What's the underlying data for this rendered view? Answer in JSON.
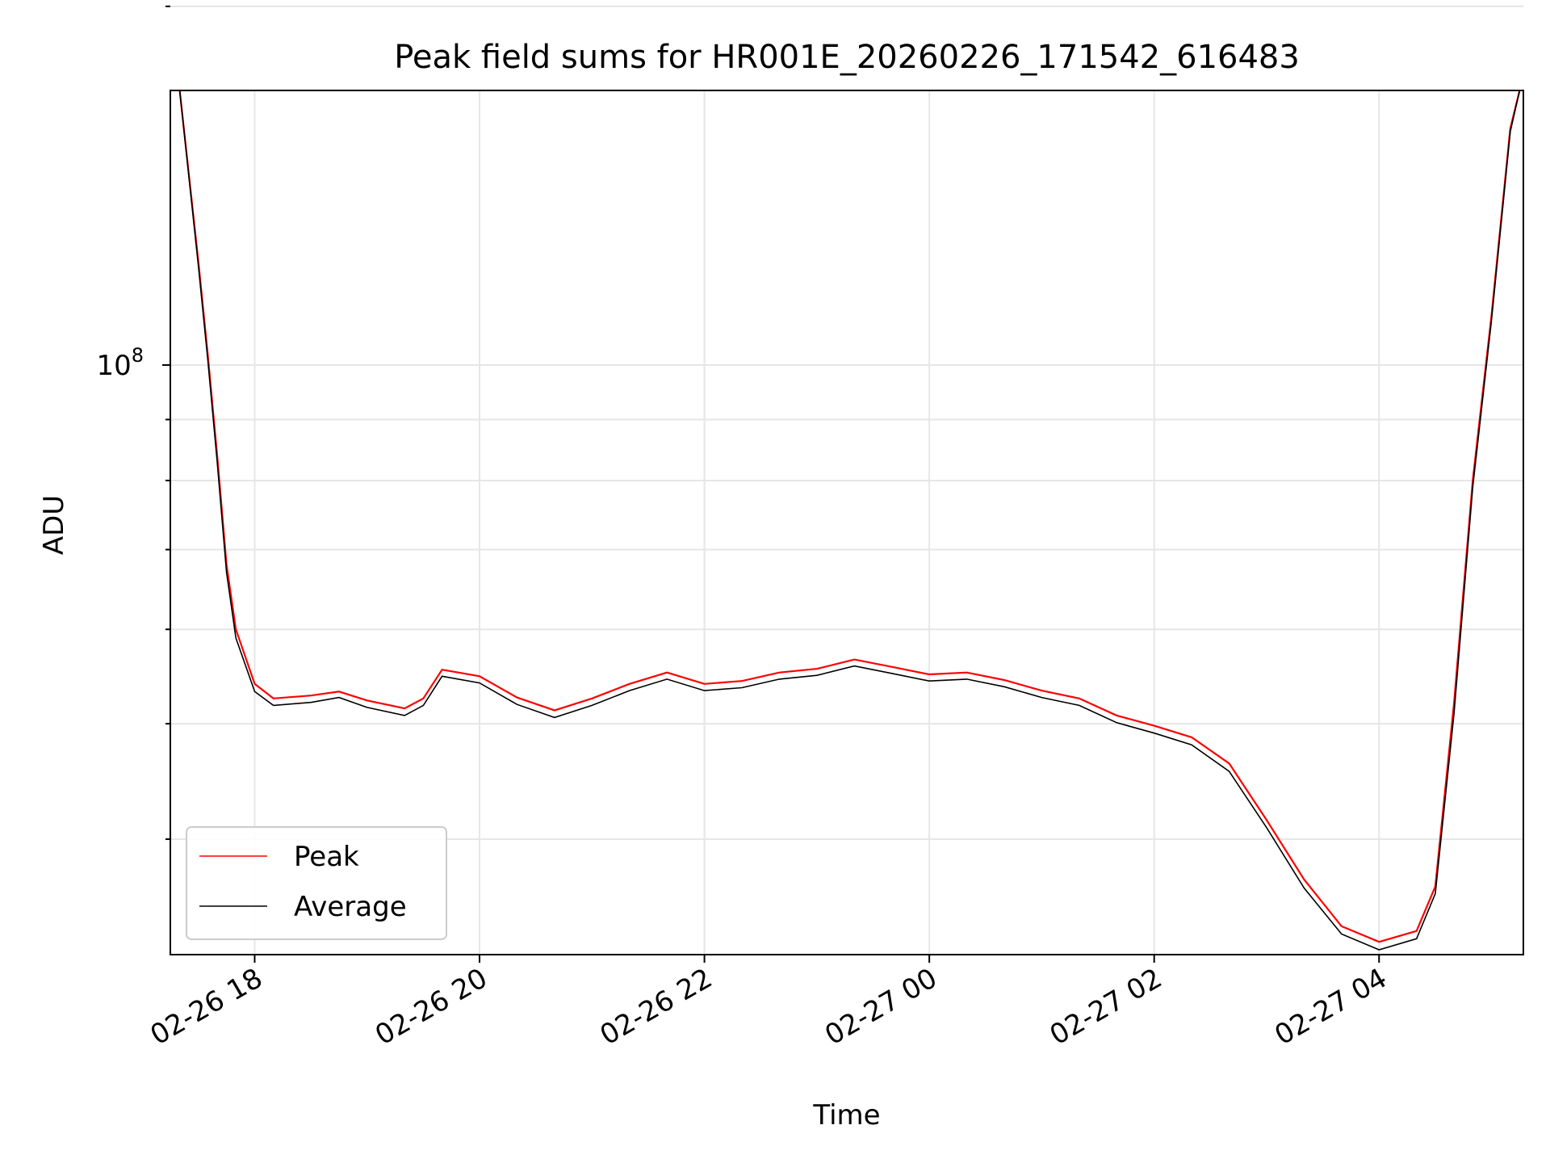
{
  "chart_data": {
    "type": "line",
    "title": "Peak field sums for HR001E_20260226_171542_616483",
    "xlabel": "Time",
    "ylabel": "ADU",
    "y_scale": "log",
    "ylim": [
      32000000,
      170000000
    ],
    "xlim": [
      "2026-02-26 17:15",
      "2026-02-27 05:17"
    ],
    "grid": true,
    "legend_position": "lower-left",
    "x_ticks": [
      {
        "t": "2026-02-26 18:00",
        "label": "02-26 18"
      },
      {
        "t": "2026-02-26 20:00",
        "label": "02-26 20"
      },
      {
        "t": "2026-02-26 22:00",
        "label": "02-26 22"
      },
      {
        "t": "2026-02-27 00:00",
        "label": "02-27 00"
      },
      {
        "t": "2026-02-27 02:00",
        "label": "02-27 02"
      },
      {
        "t": "2026-02-27 04:00",
        "label": "02-27 04"
      }
    ],
    "y_major_tick": {
      "value": 100000000,
      "label_base": "10",
      "label_exp": "8"
    },
    "y_minor_ticks": [
      40000000,
      50000000,
      60000000,
      70000000,
      80000000,
      90000000,
      200000000
    ],
    "series": [
      {
        "name": "Peak",
        "color": "#ff0000",
        "points": [
          [
            "2026-02-26 17:20",
            170000000
          ],
          [
            "2026-02-26 17:30",
            122000000
          ],
          [
            "2026-02-26 17:35",
            102000000
          ],
          [
            "2026-02-26 17:40",
            84000000
          ],
          [
            "2026-02-26 17:45",
            68000000
          ],
          [
            "2026-02-26 17:50",
            60000000
          ],
          [
            "2026-02-26 18:00",
            54000000
          ],
          [
            "2026-02-26 18:10",
            52500000
          ],
          [
            "2026-02-26 18:30",
            52800000
          ],
          [
            "2026-02-26 18:45",
            53200000
          ],
          [
            "2026-02-26 19:00",
            52300000
          ],
          [
            "2026-02-26 19:20",
            51500000
          ],
          [
            "2026-02-26 19:30",
            52500000
          ],
          [
            "2026-02-26 19:40",
            55500000
          ],
          [
            "2026-02-26 20:00",
            54800000
          ],
          [
            "2026-02-26 20:20",
            52600000
          ],
          [
            "2026-02-26 20:40",
            51300000
          ],
          [
            "2026-02-26 21:00",
            52500000
          ],
          [
            "2026-02-26 21:20",
            54000000
          ],
          [
            "2026-02-26 21:40",
            55200000
          ],
          [
            "2026-02-26 22:00",
            54000000
          ],
          [
            "2026-02-26 22:20",
            54300000
          ],
          [
            "2026-02-26 22:40",
            55200000
          ],
          [
            "2026-02-26 23:00",
            55600000
          ],
          [
            "2026-02-26 23:20",
            56600000
          ],
          [
            "2026-02-26 23:40",
            55800000
          ],
          [
            "2026-02-27 00:00",
            55000000
          ],
          [
            "2026-02-27 00:20",
            55200000
          ],
          [
            "2026-02-27 00:40",
            54400000
          ],
          [
            "2026-02-27 01:00",
            53300000
          ],
          [
            "2026-02-27 01:20",
            52500000
          ],
          [
            "2026-02-27 01:40",
            50800000
          ],
          [
            "2026-02-27 02:00",
            49800000
          ],
          [
            "2026-02-27 02:20",
            48700000
          ],
          [
            "2026-02-27 02:40",
            46300000
          ],
          [
            "2026-02-27 03:00",
            41500000
          ],
          [
            "2026-02-27 03:20",
            37000000
          ],
          [
            "2026-02-27 03:40",
            33800000
          ],
          [
            "2026-02-27 04:00",
            32800000
          ],
          [
            "2026-02-27 04:20",
            33500000
          ],
          [
            "2026-02-27 04:30",
            36500000
          ],
          [
            "2026-02-27 04:40",
            52000000
          ],
          [
            "2026-02-27 04:50",
            80000000
          ],
          [
            "2026-02-27 05:00",
            110000000
          ],
          [
            "2026-02-27 05:10",
            158000000
          ],
          [
            "2026-02-27 05:15",
            170000000
          ]
        ]
      },
      {
        "name": "Average",
        "color": "#000000",
        "points": [
          [
            "2026-02-26 17:20",
            170000000
          ],
          [
            "2026-02-26 17:30",
            121000000
          ],
          [
            "2026-02-26 17:35",
            101000000
          ],
          [
            "2026-02-26 17:40",
            83000000
          ],
          [
            "2026-02-26 17:45",
            67000000
          ],
          [
            "2026-02-26 17:50",
            59000000
          ],
          [
            "2026-02-26 18:00",
            53200000
          ],
          [
            "2026-02-26 18:10",
            51800000
          ],
          [
            "2026-02-26 18:30",
            52100000
          ],
          [
            "2026-02-26 18:45",
            52600000
          ],
          [
            "2026-02-26 19:00",
            51600000
          ],
          [
            "2026-02-26 19:20",
            50800000
          ],
          [
            "2026-02-26 19:30",
            51800000
          ],
          [
            "2026-02-26 19:40",
            54800000
          ],
          [
            "2026-02-26 20:00",
            54100000
          ],
          [
            "2026-02-26 20:20",
            51900000
          ],
          [
            "2026-02-26 20:40",
            50600000
          ],
          [
            "2026-02-26 21:00",
            51800000
          ],
          [
            "2026-02-26 21:20",
            53300000
          ],
          [
            "2026-02-26 21:40",
            54500000
          ],
          [
            "2026-02-26 22:00",
            53300000
          ],
          [
            "2026-02-26 22:20",
            53600000
          ],
          [
            "2026-02-26 22:40",
            54500000
          ],
          [
            "2026-02-26 23:00",
            54900000
          ],
          [
            "2026-02-26 23:20",
            55900000
          ],
          [
            "2026-02-26 23:40",
            55100000
          ],
          [
            "2026-02-27 00:00",
            54300000
          ],
          [
            "2026-02-27 00:20",
            54500000
          ],
          [
            "2026-02-27 00:40",
            53700000
          ],
          [
            "2026-02-27 01:00",
            52600000
          ],
          [
            "2026-02-27 01:20",
            51800000
          ],
          [
            "2026-02-27 01:40",
            50100000
          ],
          [
            "2026-02-27 02:00",
            49100000
          ],
          [
            "2026-02-27 02:20",
            48000000
          ],
          [
            "2026-02-27 02:40",
            45600000
          ],
          [
            "2026-02-27 03:00",
            40900000
          ],
          [
            "2026-02-27 03:20",
            36400000
          ],
          [
            "2026-02-27 03:40",
            33300000
          ],
          [
            "2026-02-27 04:00",
            32300000
          ],
          [
            "2026-02-27 04:20",
            33000000
          ],
          [
            "2026-02-27 04:30",
            36000000
          ],
          [
            "2026-02-27 04:40",
            51000000
          ],
          [
            "2026-02-27 04:50",
            79000000
          ],
          [
            "2026-02-27 05:00",
            109000000
          ],
          [
            "2026-02-27 05:10",
            157000000
          ],
          [
            "2026-02-27 05:15",
            170000000
          ]
        ]
      }
    ]
  }
}
